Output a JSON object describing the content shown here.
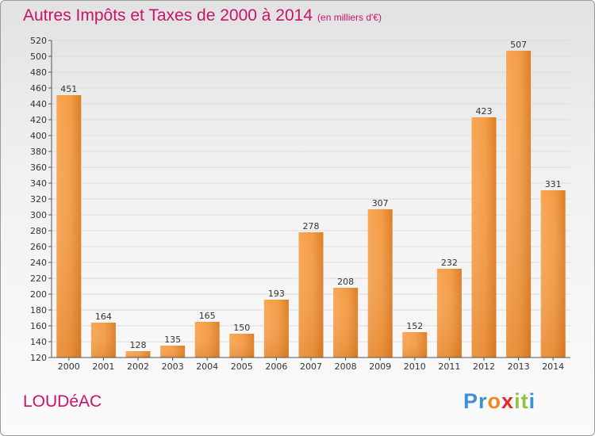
{
  "title": "Autres Impôts et Taxes de 2000 à 2014",
  "subtitle": "(en milliers d'€)",
  "location": "LOUDéAC",
  "brand": {
    "letters": [
      "P",
      "r",
      "o",
      "x",
      "i",
      "t",
      "i"
    ],
    "colors": [
      "#3d8fd6",
      "#3d8fd6",
      "#f08a1c",
      "#e8262c",
      "#8cc63f",
      "#8cc63f",
      "#3d8fd6"
    ]
  },
  "colors": {
    "title": "#c8136b",
    "bar_light": "#f7a654",
    "bar_dark": "#d9781f"
  },
  "chart_data": {
    "type": "bar",
    "categories": [
      "2000",
      "2001",
      "2002",
      "2003",
      "2004",
      "2005",
      "2006",
      "2007",
      "2008",
      "2009",
      "2010",
      "2011",
      "2012",
      "2013",
      "2014"
    ],
    "values": [
      451,
      164,
      128,
      135,
      165,
      150,
      193,
      278,
      208,
      307,
      152,
      232,
      423,
      507,
      331
    ],
    "ylim": [
      120,
      520
    ],
    "yticks": [
      120,
      140,
      160,
      180,
      200,
      220,
      240,
      260,
      280,
      300,
      320,
      340,
      360,
      380,
      400,
      420,
      440,
      460,
      480,
      500,
      520
    ],
    "grid": true
  }
}
